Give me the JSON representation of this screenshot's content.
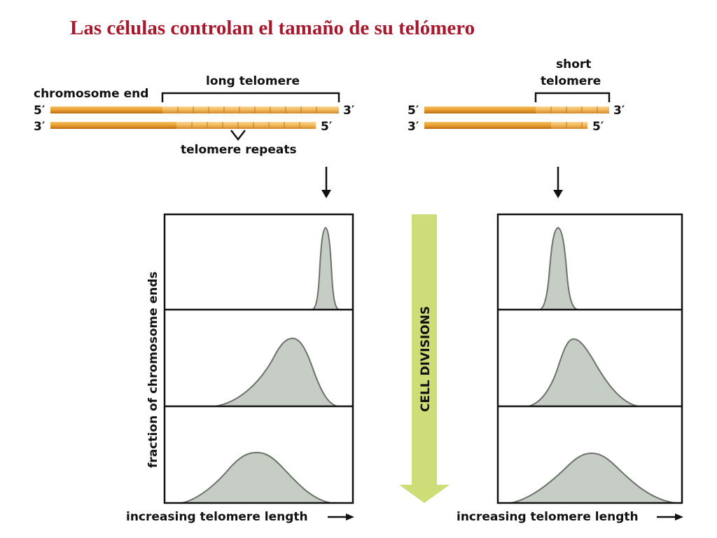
{
  "title": "Las células controlan el tamaño de su telómero",
  "labels": {
    "chromosome_end": "chromosome end",
    "long_telomere": "long telomere",
    "telomere_repeats": "telomere repeats",
    "short_line1": "short",
    "short_line2": "telomere",
    "five_prime": "5′",
    "three_prime": "3′",
    "fraction_axis": "fraction of chromosome ends",
    "cell_divisions": "CELL DIVISIONS",
    "x_axis_left": "increasing telomere length",
    "x_axis_right": "increasing telomere length"
  },
  "colors": {
    "title": "#a8182c",
    "dna_orange": "#e69a2b",
    "curve_fill": "#c6cdc5",
    "curve_stroke": "#6b736b",
    "arrow_green": "#cfdd78"
  }
}
